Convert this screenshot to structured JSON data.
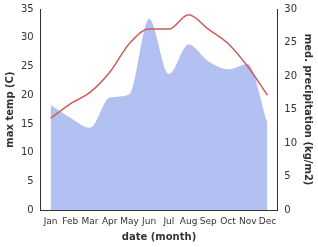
{
  "chart_data": {
    "type": "line",
    "x_label": "date (month)",
    "y_label": "max temp (C)",
    "y2_label": "med. precipitation (kg/m2)",
    "categories": [
      "Jan",
      "Feb",
      "Mar",
      "Apr",
      "May",
      "Jun",
      "Jul",
      "Aug",
      "Sep",
      "Oct",
      "Nov",
      "Dec"
    ],
    "series": [
      {
        "type": "line",
        "color": "#cd5c5c",
        "values": [
          16,
          18.5,
          20.5,
          24,
          29,
          31.5,
          31.5,
          34,
          31.5,
          29,
          25,
          20
        ]
      },
      {
        "type": "area",
        "axis": "y2",
        "color": "#b3c1f2",
        "values": [
          15.7,
          13.8,
          12.3,
          16.8,
          17.3,
          28.5,
          20.3,
          24.7,
          22.2,
          21,
          21.8,
          13
        ]
      }
    ],
    "ylim": [
      0,
      35
    ],
    "yticks": [
      0,
      5,
      10,
      15,
      20,
      25,
      30,
      35
    ],
    "y2lim": [
      0,
      30
    ],
    "y2ticks": [
      0,
      5,
      10,
      15,
      20,
      25,
      30
    ],
    "grid": false
  }
}
